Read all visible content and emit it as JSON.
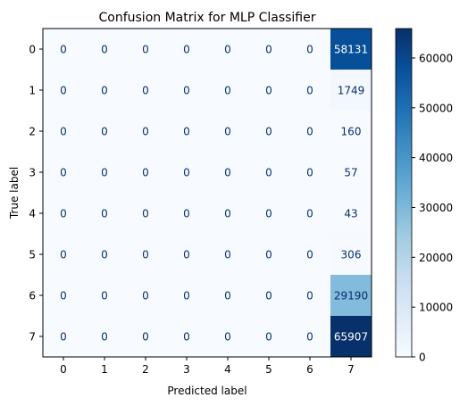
{
  "chart_data": {
    "type": "heatmap",
    "title": "Confusion Matrix for MLP Classifier",
    "xlabel": "Predicted label",
    "ylabel": "True label",
    "x_ticks": [
      "0",
      "1",
      "2",
      "3",
      "4",
      "5",
      "6",
      "7"
    ],
    "y_ticks": [
      "0",
      "1",
      "2",
      "3",
      "4",
      "5",
      "6",
      "7"
    ],
    "matrix": [
      [
        0,
        0,
        0,
        0,
        0,
        0,
        0,
        58131
      ],
      [
        0,
        0,
        0,
        0,
        0,
        0,
        0,
        1749
      ],
      [
        0,
        0,
        0,
        0,
        0,
        0,
        0,
        160
      ],
      [
        0,
        0,
        0,
        0,
        0,
        0,
        0,
        57
      ],
      [
        0,
        0,
        0,
        0,
        0,
        0,
        0,
        43
      ],
      [
        0,
        0,
        0,
        0,
        0,
        0,
        0,
        306
      ],
      [
        0,
        0,
        0,
        0,
        0,
        0,
        0,
        29190
      ],
      [
        0,
        0,
        0,
        0,
        0,
        0,
        0,
        65907
      ]
    ],
    "colormap": "Blues",
    "colorbar": {
      "range": [
        0,
        65907
      ],
      "ticks": [
        "0",
        "10000",
        "20000",
        "30000",
        "40000",
        "50000",
        "60000"
      ],
      "tick_values": [
        0,
        10000,
        20000,
        30000,
        40000,
        50000,
        60000
      ]
    },
    "grid": false,
    "text_color_dark": "#08306b",
    "text_color_light": "#ffffff"
  }
}
